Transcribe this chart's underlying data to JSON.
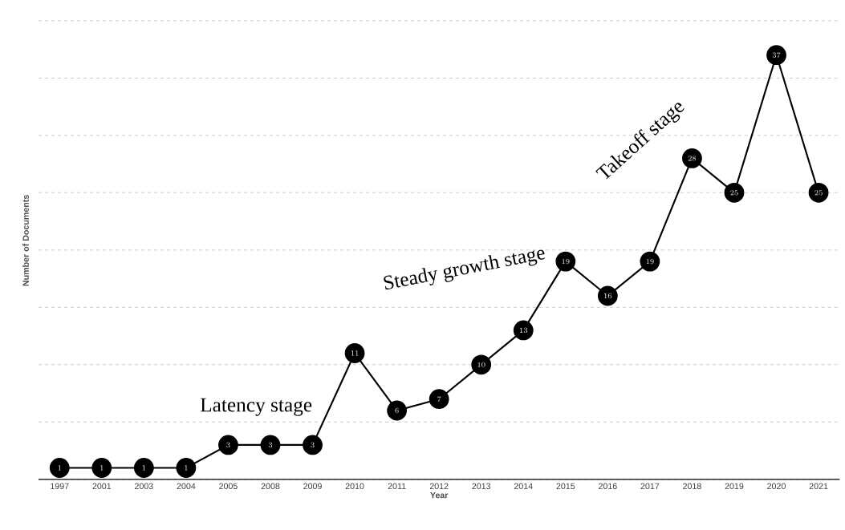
{
  "chart_data": {
    "type": "line",
    "xlabel": "Year",
    "ylabel": "Number of Documents",
    "categories": [
      "1997",
      "2001",
      "2003",
      "2004",
      "2005",
      "2008",
      "2009",
      "2010",
      "2011",
      "2012",
      "2013",
      "2014",
      "2015",
      "2016",
      "2017",
      "2018",
      "2019",
      "2020",
      "2021"
    ],
    "values": [
      1,
      1,
      1,
      1,
      3,
      3,
      3,
      11,
      6,
      7,
      10,
      13,
      19,
      16,
      19,
      28,
      25,
      37,
      25
    ],
    "color": "#000000",
    "yticks": [
      {
        "value": 0,
        "label": null
      },
      {
        "value": 5,
        "label": null
      },
      {
        "value": 10,
        "label": null
      },
      {
        "value": 15,
        "label": null
      },
      {
        "value": 20,
        "label": null
      },
      {
        "value": 25,
        "label": null
      },
      {
        "value": 30,
        "label": null
      },
      {
        "value": 35,
        "label": null
      },
      {
        "value": 40,
        "label": null
      }
    ],
    "tick_labels": "x",
    "grid": "y",
    "marker": "circle",
    "line_style": "solid",
    "data_labels": true,
    "annotations": [
      "Latency stage",
      "Steady growth stage",
      "Takeoff stage"
    ]
  }
}
